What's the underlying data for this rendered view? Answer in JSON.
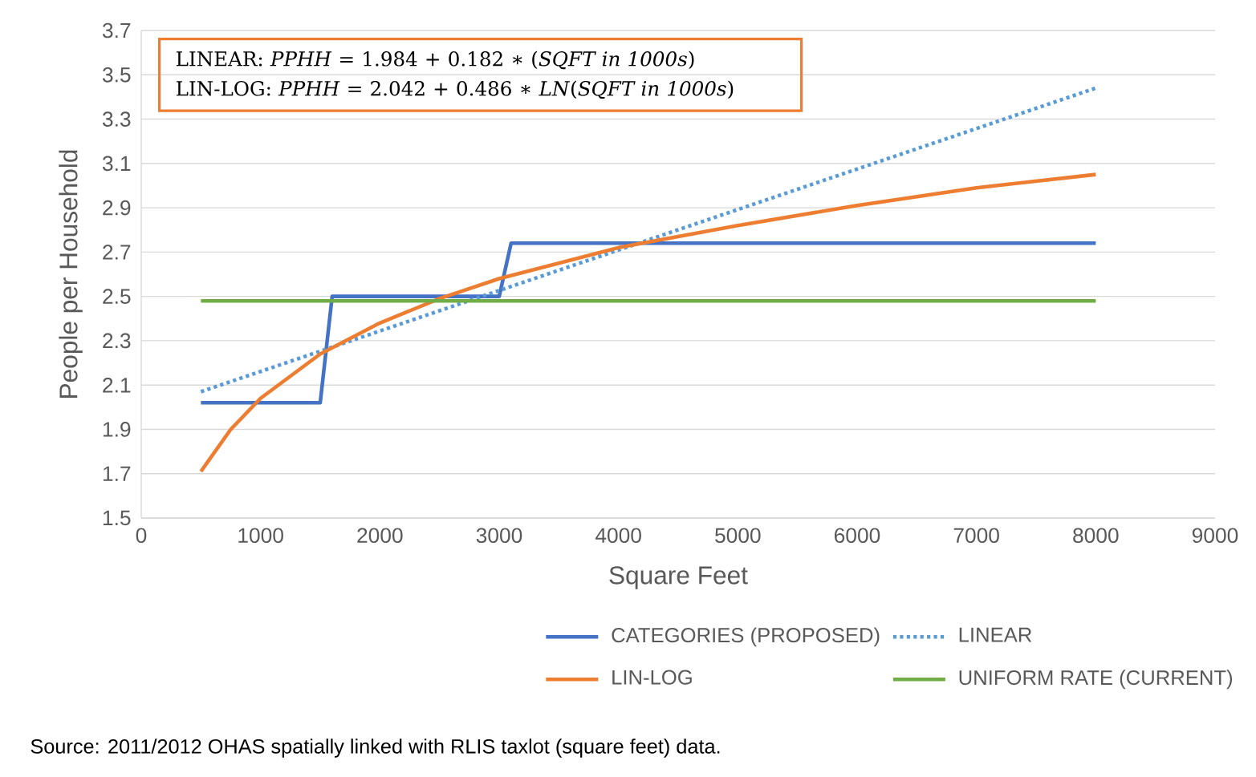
{
  "chart_data": {
    "type": "line",
    "xlabel": "Square Feet",
    "ylabel": "People per Household",
    "xlim": [
      0,
      9000
    ],
    "ylim": [
      1.5,
      3.7
    ],
    "xticks": [
      0,
      1000,
      2000,
      3000,
      4000,
      5000,
      6000,
      7000,
      8000,
      9000
    ],
    "yticks": [
      1.5,
      1.7,
      1.9,
      2.1,
      2.3,
      2.5,
      2.7,
      2.9,
      3.1,
      3.3,
      3.5,
      3.7
    ],
    "grid": "y",
    "legend": "bottom",
    "marker": "none",
    "series": [
      {
        "name": "CATEGORIES (PROPOSED)",
        "color": "#4472c4",
        "line_style": "solid",
        "x": [
          500,
          1500,
          1600,
          3000,
          3100,
          8000
        ],
        "values": [
          2.02,
          2.02,
          2.5,
          2.5,
          2.74,
          2.74
        ]
      },
      {
        "name": "LINEAR",
        "color": "#5b9bd5",
        "line_style": "dotted",
        "x": [
          500,
          8000
        ],
        "values": [
          2.07,
          3.44
        ]
      },
      {
        "name": "LIN-LOG",
        "color": "#ed7d31",
        "line_style": "solid",
        "x": [
          500,
          750,
          1000,
          1500,
          2000,
          2500,
          3000,
          4000,
          5000,
          6000,
          7000,
          8000
        ],
        "values": [
          1.71,
          1.9,
          2.04,
          2.24,
          2.38,
          2.49,
          2.58,
          2.72,
          2.82,
          2.91,
          2.99,
          3.05
        ]
      },
      {
        "name": "UNIFORM RATE (CURRENT)",
        "color": "#70ad47",
        "line_style": "solid",
        "x": [
          500,
          8000
        ],
        "values": [
          2.48,
          2.48
        ]
      }
    ],
    "annotations": [
      "LINEAR: *PPHH* = 1.984 + 0.182 ∗ (*SQFT in 1000s*)",
      "LIN-LOG: *PPHH* = 2.042 + 0.486 ∗ *LN*(*SQFT in 1000s*)",
      "Source: 2011/2012 OHAS spatially linked with RLIS taxlot (square feet) data."
    ]
  }
}
